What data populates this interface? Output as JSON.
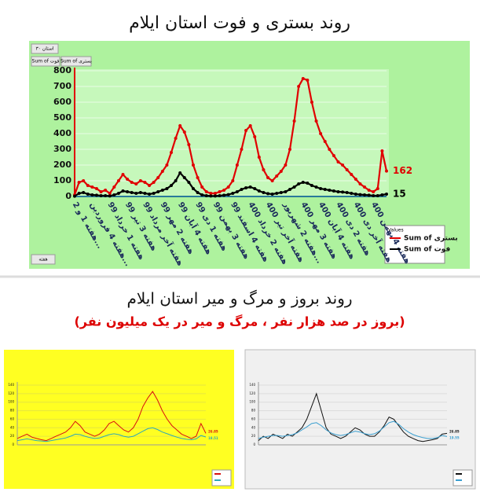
{
  "page_title": "روند بستری و فوت استان ایلام",
  "section_title": "روند بروز و مرگ و میر استان ایلام",
  "section_subtitle": "(بروز در صد هزار نفر ، مرگ و میر در یک میلیون نفر)",
  "pivot": {
    "filter": "استان ۳۰",
    "field_1": "Sum of فوت",
    "field_2": "Sum of بستری",
    "axis_field": "هفته",
    "legend_title": "Values"
  },
  "chart_data": [
    {
      "type": "line",
      "ylim": [
        0,
        800
      ],
      "yticks": [
        0,
        100,
        200,
        300,
        400,
        500,
        600,
        700,
        800
      ],
      "grid": true,
      "categories": [
        "هفته 1 و 2...",
        null,
        null,
        null,
        "هفته 4 فروردین...",
        null,
        null,
        null,
        "هفته 1 خرداد 99",
        null,
        null,
        null,
        "هفته 3 تیر 99",
        null,
        null,
        null,
        "هفته آخر مرداد 99",
        null,
        null,
        null,
        "هفته 2 مهر 99",
        null,
        null,
        null,
        "هفته 4 آبان 99",
        null,
        null,
        null,
        "هفته 1 دی 99",
        null,
        null,
        null,
        "هفته 3 بهمن 99",
        null,
        null,
        null,
        "هفته 4 اسفند 99",
        null,
        null,
        null,
        "هفته 2 خرداد 400",
        null,
        null,
        null,
        "هفته آخر تیر 400",
        null,
        null,
        null,
        "هفته 2 شهریور...",
        null,
        null,
        null,
        "هفته 3 مهر 400",
        null,
        null,
        null,
        "هفته 4 آبان 400",
        null,
        null,
        null,
        "هفته 2 دی 400",
        null,
        null,
        null,
        "هفته آخر دی 400",
        null,
        null,
        null,
        "هفته 4 بهمن 400",
        null,
        null,
        null
      ],
      "series": [
        {
          "name": "Sum of بستری",
          "color": "#e00000",
          "values": [
            10,
            90,
            100,
            70,
            60,
            50,
            30,
            40,
            20,
            60,
            100,
            140,
            110,
            90,
            80,
            100,
            90,
            70,
            90,
            120,
            160,
            200,
            280,
            370,
            450,
            410,
            330,
            200,
            120,
            60,
            30,
            20,
            20,
            30,
            40,
            60,
            100,
            200,
            300,
            420,
            450,
            380,
            250,
            170,
            120,
            100,
            130,
            160,
            200,
            300,
            480,
            700,
            750,
            740,
            600,
            480,
            400,
            350,
            300,
            260,
            220,
            200,
            170,
            140,
            110,
            80,
            60,
            40,
            30,
            50,
            290,
            162
          ]
        },
        {
          "name": "Sum of فوت",
          "color": "#000000",
          "values": [
            2,
            20,
            25,
            15,
            10,
            8,
            5,
            5,
            3,
            10,
            20,
            35,
            30,
            25,
            20,
            25,
            20,
            15,
            20,
            30,
            40,
            50,
            70,
            100,
            150,
            120,
            90,
            50,
            25,
            10,
            5,
            3,
            3,
            5,
            8,
            12,
            20,
            30,
            45,
            55,
            60,
            50,
            35,
            25,
            18,
            15,
            20,
            25,
            30,
            45,
            60,
            80,
            90,
            85,
            70,
            60,
            50,
            45,
            40,
            35,
            30,
            28,
            25,
            20,
            15,
            12,
            10,
            8,
            5,
            5,
            10,
            15
          ]
        }
      ]
    },
    {
      "type": "line",
      "ylim": [
        0,
        140
      ],
      "yticks": [
        0,
        20,
        40,
        60,
        80,
        100,
        120,
        140
      ],
      "grid": true,
      "series": [
        {
          "color": "#d81010",
          "values": [
            15,
            20,
            25,
            18,
            15,
            12,
            10,
            15,
            20,
            25,
            30,
            40,
            55,
            45,
            30,
            25,
            20,
            25,
            35,
            50,
            55,
            45,
            35,
            30,
            40,
            60,
            90,
            110,
            125,
            105,
            80,
            60,
            45,
            35,
            25,
            20,
            15,
            20,
            50,
            26.85
          ]
        },
        {
          "color": "#2ea8b8",
          "values": [
            10,
            12,
            14,
            12,
            10,
            9,
            8,
            10,
            12,
            14,
            16,
            20,
            25,
            24,
            20,
            17,
            15,
            16,
            20,
            24,
            26,
            24,
            20,
            18,
            20,
            26,
            32,
            38,
            40,
            36,
            30,
            26,
            22,
            18,
            15,
            13,
            12,
            14,
            22,
            18.51
          ]
        }
      ]
    },
    {
      "type": "line",
      "ylim": [
        0,
        140
      ],
      "yticks": [
        0,
        20,
        40,
        60,
        80,
        100,
        120,
        140
      ],
      "grid": true,
      "series": [
        {
          "color": "#111111",
          "values": [
            10,
            20,
            15,
            25,
            20,
            15,
            25,
            20,
            30,
            40,
            60,
            90,
            120,
            80,
            40,
            25,
            20,
            15,
            20,
            30,
            40,
            35,
            25,
            20,
            20,
            30,
            45,
            65,
            60,
            45,
            30,
            20,
            15,
            10,
            8,
            10,
            12,
            15,
            25,
            26.85
          ]
        },
        {
          "color": "#3a9fd0",
          "values": [
            15,
            18,
            20,
            22,
            22,
            20,
            22,
            24,
            28,
            35,
            42,
            50,
            52,
            45,
            35,
            28,
            24,
            22,
            24,
            28,
            32,
            30,
            26,
            24,
            26,
            32,
            42,
            52,
            55,
            48,
            38,
            30,
            24,
            20,
            17,
            15,
            15,
            17,
            22,
            19.55
          ]
        }
      ]
    }
  ]
}
